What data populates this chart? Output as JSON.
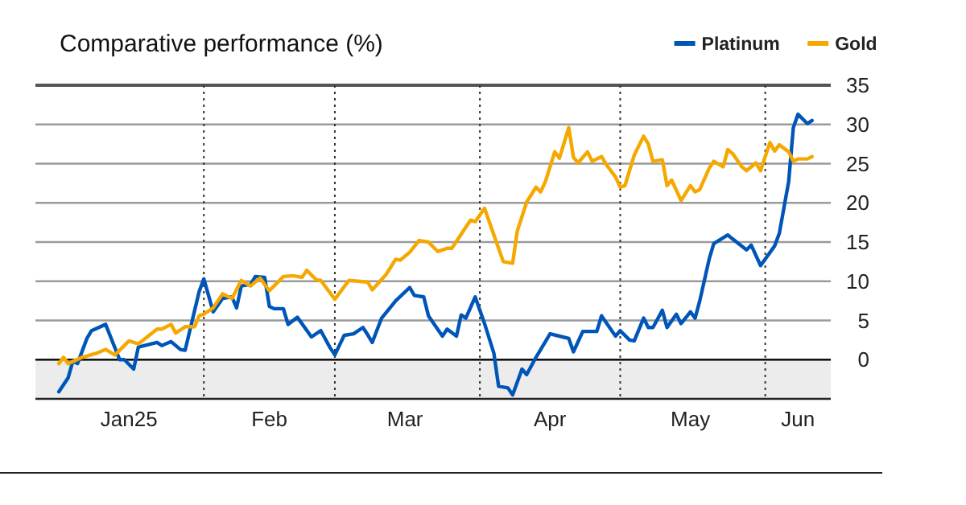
{
  "chart_data": {
    "type": "line",
    "title": "Comparative performance (%)",
    "xlim": [
      "2024-12-27",
      "2025-06-15"
    ],
    "xticks": [
      {
        "value": "2025-01-16",
        "label": "Jan25"
      },
      {
        "value": "2025-02-15",
        "label": "Feb"
      },
      {
        "value": "2025-03-16",
        "label": "Mar"
      },
      {
        "value": "2025-04-16",
        "label": "Apr"
      },
      {
        "value": "2025-05-16",
        "label": "May"
      },
      {
        "value": "2025-06-08",
        "label": "Jun"
      }
    ],
    "ylim": [
      -5,
      35
    ],
    "yticks": [
      0,
      5,
      10,
      15,
      20,
      25,
      30,
      35
    ],
    "grid": "y",
    "legend": "top right",
    "line_style": "solid",
    "marker": "none",
    "ref_lines": [
      {
        "axis": "x",
        "value": "2025-02-01",
        "line_style": "dotted",
        "color": "#333333"
      },
      {
        "axis": "x",
        "value": "2025-03-01",
        "line_style": "dotted",
        "color": "#333333"
      },
      {
        "axis": "x",
        "value": "2025-04-01",
        "line_style": "dotted",
        "color": "#333333"
      },
      {
        "axis": "x",
        "value": "2025-05-01",
        "line_style": "dotted",
        "color": "#333333"
      },
      {
        "axis": "x",
        "value": "2025-06-01",
        "line_style": "dotted",
        "color": "#333333"
      },
      {
        "axis": "y",
        "value": 0,
        "line_style": "solid",
        "color": "#111111"
      }
    ],
    "bands": [
      {
        "axis": "y",
        "from": -5,
        "to": 0,
        "color": "#ececec"
      }
    ],
    "series": [
      {
        "name": "Platinum",
        "color": "#0055b8",
        "x": [
          "2025-01-01",
          "2025-01-03",
          "2025-01-04",
          "2025-01-05",
          "2025-01-07",
          "2025-01-08",
          "2025-01-11",
          "2025-01-14",
          "2025-01-15",
          "2025-01-17",
          "2025-01-18",
          "2025-01-22",
          "2025-01-23",
          "2025-01-25",
          "2025-01-27",
          "2025-01-28",
          "2025-01-31",
          "2025-02-01",
          "2025-02-03",
          "2025-02-05",
          "2025-02-07",
          "2025-02-08",
          "2025-02-09",
          "2025-02-11",
          "2025-02-12",
          "2025-02-14",
          "2025-02-15",
          "2025-02-16",
          "2025-02-18",
          "2025-02-19",
          "2025-02-21",
          "2025-02-24",
          "2025-02-26",
          "2025-02-28",
          "2025-03-01",
          "2025-03-03",
          "2025-03-05",
          "2025-03-07",
          "2025-03-08",
          "2025-03-09",
          "2025-03-11",
          "2025-03-14",
          "2025-03-17",
          "2025-03-18",
          "2025-03-20",
          "2025-03-21",
          "2025-03-24",
          "2025-03-25",
          "2025-03-27",
          "2025-03-28",
          "2025-03-29",
          "2025-03-31",
          "2025-04-02",
          "2025-04-04",
          "2025-04-05",
          "2025-04-07",
          "2025-04-08",
          "2025-04-10",
          "2025-04-11",
          "2025-04-13",
          "2025-04-16",
          "2025-04-18",
          "2025-04-20",
          "2025-04-21",
          "2025-04-23",
          "2025-04-26",
          "2025-04-27",
          "2025-04-30",
          "2025-05-01",
          "2025-05-03",
          "2025-05-04",
          "2025-05-06",
          "2025-05-07",
          "2025-05-08",
          "2025-05-10",
          "2025-05-11",
          "2025-05-13",
          "2025-05-14",
          "2025-05-16",
          "2025-05-17",
          "2025-05-18",
          "2025-05-20",
          "2025-05-21",
          "2025-05-24",
          "2025-05-25",
          "2025-05-28",
          "2025-05-29",
          "2025-05-31",
          "2025-06-03",
          "2025-06-04",
          "2025-06-06",
          "2025-06-07",
          "2025-06-08",
          "2025-06-10",
          "2025-06-11"
        ],
        "values": [
          -4.1,
          -2.3,
          -0.2,
          -0.5,
          2.7,
          3.7,
          4.5,
          0,
          0,
          -1.2,
          1.6,
          2.2,
          1.8,
          2.3,
          1.3,
          1.2,
          8.7,
          10.3,
          6.1,
          7.8,
          8.0,
          6.6,
          9.4,
          9.6,
          10.6,
          10.5,
          6.8,
          6.5,
          6.5,
          4.5,
          5.4,
          2.9,
          3.7,
          1.5,
          0.6,
          3.1,
          3.3,
          4.1,
          3.2,
          2.2,
          5.3,
          7.5,
          9.2,
          8.2,
          8.0,
          5.6,
          3.0,
          3.9,
          3.0,
          5.7,
          5.3,
          8.0,
          4.6,
          0.8,
          -3.4,
          -3.6,
          -4.5,
          -1.2,
          -1.9,
          0.3,
          3.3,
          3.0,
          2.7,
          1.0,
          3.6,
          3.6,
          5.6,
          3.0,
          3.7,
          2.5,
          2.4,
          5.3,
          4.1,
          4.1,
          6.3,
          4.1,
          5.8,
          4.6,
          6.1,
          5.3,
          7.5,
          12.8,
          14.8,
          15.9,
          15.4,
          14.0,
          14.6,
          12.0,
          14.5,
          16.1,
          22.7,
          29.6,
          31.3,
          30.1,
          30.5
        ]
      },
      {
        "name": "Gold",
        "color": "#f5a800",
        "x": [
          "2025-01-01",
          "2025-01-02",
          "2025-01-03",
          "2025-01-06",
          "2025-01-09",
          "2025-01-11",
          "2025-01-13",
          "2025-01-16",
          "2025-01-18",
          "2025-01-22",
          "2025-01-23",
          "2025-01-25",
          "2025-01-26",
          "2025-01-28",
          "2025-01-30",
          "2025-01-31",
          "2025-02-01",
          "2025-02-03",
          "2025-02-05",
          "2025-02-07",
          "2025-02-09",
          "2025-02-11",
          "2025-02-13",
          "2025-02-15",
          "2025-02-18",
          "2025-02-20",
          "2025-02-22",
          "2025-02-23",
          "2025-02-25",
          "2025-02-26",
          "2025-02-28",
          "2025-03-01",
          "2025-03-04",
          "2025-03-08",
          "2025-03-09",
          "2025-03-12",
          "2025-03-14",
          "2025-03-15",
          "2025-03-17",
          "2025-03-19",
          "2025-03-21",
          "2025-03-23",
          "2025-03-25",
          "2025-03-26",
          "2025-03-28",
          "2025-03-30",
          "2025-03-31",
          "2025-04-02",
          "2025-04-04",
          "2025-04-06",
          "2025-04-08",
          "2025-04-09",
          "2025-04-11",
          "2025-04-13",
          "2025-04-14",
          "2025-04-15",
          "2025-04-17",
          "2025-04-18",
          "2025-04-20",
          "2025-04-21",
          "2025-04-22",
          "2025-04-24",
          "2025-04-25",
          "2025-04-27",
          "2025-04-28",
          "2025-04-30",
          "2025-05-01",
          "2025-05-02",
          "2025-05-04",
          "2025-05-06",
          "2025-05-07",
          "2025-05-08",
          "2025-05-10",
          "2025-05-11",
          "2025-05-12",
          "2025-05-14",
          "2025-05-16",
          "2025-05-17",
          "2025-05-18",
          "2025-05-20",
          "2025-05-21",
          "2025-05-23",
          "2025-05-24",
          "2025-05-25",
          "2025-05-27",
          "2025-05-28",
          "2025-05-30",
          "2025-05-31",
          "2025-06-02",
          "2025-06-03",
          "2025-06-04",
          "2025-06-06",
          "2025-06-07",
          "2025-06-08",
          "2025-06-10",
          "2025-06-11"
        ],
        "values": [
          -0.5,
          0.3,
          -0.5,
          0.3,
          0.8,
          1.3,
          0.6,
          2.4,
          2.0,
          3.9,
          3.9,
          4.5,
          3.4,
          4.2,
          4.2,
          5.6,
          5.8,
          6.6,
          8.4,
          7.8,
          10.1,
          9.4,
          10.4,
          8.8,
          10.6,
          10.7,
          10.5,
          11.4,
          10.2,
          10.1,
          8.5,
          7.7,
          10.1,
          9.9,
          8.9,
          10.9,
          12.8,
          12.7,
          13.7,
          15.2,
          15.0,
          13.8,
          14.2,
          14.2,
          16.0,
          17.8,
          17.6,
          19.3,
          15.9,
          12.5,
          12.3,
          16.4,
          20.1,
          22.0,
          21.4,
          22.7,
          26.5,
          25.7,
          29.6,
          25.8,
          25.1,
          26.5,
          25.3,
          25.9,
          24.9,
          23.3,
          22.0,
          22.2,
          26.1,
          28.5,
          27.5,
          25.3,
          25.5,
          22.2,
          22.9,
          20.3,
          22.2,
          21.4,
          21.7,
          24.4,
          25.3,
          24.6,
          26.8,
          26.3,
          24.6,
          24.1,
          25.1,
          24.1,
          27.7,
          26.6,
          27.4,
          26.5,
          25.3,
          25.6,
          25.6,
          25.9
        ]
      }
    ]
  }
}
